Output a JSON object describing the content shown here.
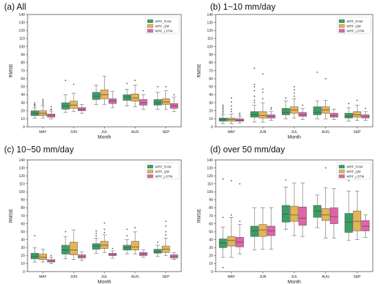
{
  "colors": {
    "WRF_RAW": "#3a9e62",
    "WRF_QM": "#e6b553",
    "WRF_LSTM": "#e065a8"
  },
  "chart_data": [
    {
      "type": "box",
      "title": "(a) All",
      "xlabel": "Month",
      "ylabel": "RMSE",
      "ylim": [
        0,
        140
      ],
      "yticks": [
        0,
        10,
        20,
        30,
        40,
        50,
        60,
        70,
        80,
        90,
        100,
        110,
        120,
        130,
        140
      ],
      "categories": [
        "MAY",
        "JUN",
        "JUL",
        "AUG",
        "SEP"
      ],
      "legend": [
        "WRF_RAW",
        "WRF_QM",
        "WRF_LSTM"
      ],
      "legend_position": "top-right",
      "series": [
        {
          "name": "WRF_RAW",
          "boxes": [
            {
              "whislo": 11,
              "q1": 14,
              "med": 17,
              "q3": 20,
              "whishi": 24,
              "fliers": [
                26,
                27,
                28,
                30
              ]
            },
            {
              "whislo": 18,
              "q1": 22,
              "med": 26,
              "q3": 30,
              "whishi": 40,
              "fliers": [
                58
              ]
            },
            {
              "whislo": 28,
              "q1": 34,
              "med": 38,
              "q3": 43,
              "whishi": 52,
              "fliers": []
            },
            {
              "whislo": 26,
              "q1": 33,
              "med": 37,
              "q3": 40,
              "whishi": 47,
              "fliers": [
                54
              ]
            },
            {
              "whislo": 22,
              "q1": 27,
              "med": 30,
              "q3": 34,
              "whishi": 43,
              "fliers": [
                50
              ]
            }
          ]
        },
        {
          "name": "WRF_QM",
          "boxes": [
            {
              "whislo": 11,
              "q1": 14,
              "med": 17,
              "q3": 20,
              "whishi": 26,
              "fliers": [
                28,
                30,
                32,
                34
              ]
            },
            {
              "whislo": 19,
              "q1": 23,
              "med": 27,
              "q3": 32,
              "whishi": 42,
              "fliers": [
                53
              ]
            },
            {
              "whislo": 28,
              "q1": 35,
              "med": 40,
              "q3": 46,
              "whishi": 63,
              "fliers": []
            },
            {
              "whislo": 25,
              "q1": 32,
              "med": 36,
              "q3": 41,
              "whishi": 52,
              "fliers": [
                58
              ]
            },
            {
              "whislo": 22,
              "q1": 28,
              "med": 31,
              "q3": 35,
              "whishi": 45,
              "fliers": [
                50
              ]
            }
          ]
        },
        {
          "name": "WRF_LSTM",
          "boxes": [
            {
              "whislo": 10,
              "q1": 12,
              "med": 14,
              "q3": 16,
              "whishi": 19,
              "fliers": [
                21,
                22,
                25
              ]
            },
            {
              "whislo": 17,
              "q1": 20,
              "med": 22,
              "q3": 24,
              "whishi": 28,
              "fliers": []
            },
            {
              "whislo": 24,
              "q1": 29,
              "med": 32,
              "q3": 35,
              "whishi": 44,
              "fliers": []
            },
            {
              "whislo": 22,
              "q1": 27,
              "med": 30,
              "q3": 34,
              "whishi": 40,
              "fliers": [
                45
              ]
            },
            {
              "whislo": 19,
              "q1": 23,
              "med": 26,
              "q3": 29,
              "whishi": 37,
              "fliers": [
                40
              ]
            }
          ]
        }
      ]
    },
    {
      "type": "box",
      "title": "(b) 1~10 mm/day",
      "xlabel": "Month",
      "ylabel": "RMSE",
      "ylim": [
        0,
        140
      ],
      "yticks": [
        0,
        10,
        20,
        30,
        40,
        50,
        60,
        70,
        80,
        90,
        100,
        110,
        120,
        130,
        140
      ],
      "categories": [
        "MAY",
        "JUN",
        "JUL",
        "AUG",
        "SEP"
      ],
      "legend": [
        "WRF_RAW",
        "WRF_QM",
        "WRF_LSTM"
      ],
      "legend_position": "top-right",
      "series": [
        {
          "name": "WRF_RAW",
          "boxes": [
            {
              "whislo": 4,
              "q1": 7,
              "med": 9,
              "q3": 11,
              "whishi": 15,
              "fliers": [
                17,
                19,
                21,
                23,
                25,
                27
              ]
            },
            {
              "whislo": 6,
              "q1": 12,
              "med": 15,
              "q3": 19,
              "whishi": 27,
              "fliers": [
                30,
                33,
                38,
                45,
                50,
                53,
                73
              ]
            },
            {
              "whislo": 10,
              "q1": 15,
              "med": 18,
              "q3": 23,
              "whishi": 32,
              "fliers": [
                36
              ]
            },
            {
              "whislo": 10,
              "q1": 15,
              "med": 18,
              "q3": 25,
              "whishi": 32,
              "fliers": [
                68
              ]
            },
            {
              "whislo": 7,
              "q1": 11,
              "med": 13,
              "q3": 17,
              "whishi": 24,
              "fliers": [
                29
              ]
            }
          ]
        },
        {
          "name": "WRF_QM",
          "boxes": [
            {
              "whislo": 4,
              "q1": 7,
              "med": 9,
              "q3": 11,
              "whishi": 16,
              "fliers": [
                19,
                22,
                26,
                31,
                36
              ]
            },
            {
              "whislo": 6,
              "q1": 11,
              "med": 14,
              "q3": 19,
              "whishi": 30,
              "fliers": [
                35,
                43,
                47,
                66
              ]
            },
            {
              "whislo": 11,
              "q1": 17,
              "med": 21,
              "q3": 25,
              "whishi": 35,
              "fliers": [
                38,
                42,
                46,
                50
              ]
            },
            {
              "whislo": 10,
              "q1": 17,
              "med": 21,
              "q3": 25,
              "whishi": 33,
              "fliers": [
                60
              ]
            },
            {
              "whislo": 8,
              "q1": 12,
              "med": 15,
              "q3": 19,
              "whishi": 27,
              "fliers": [
                33
              ]
            }
          ]
        },
        {
          "name": "WRF_LSTM",
          "boxes": [
            {
              "whislo": 5,
              "q1": 7,
              "med": 8,
              "q3": 10,
              "whishi": 13,
              "fliers": [
                15,
                17
              ]
            },
            {
              "whislo": 8,
              "q1": 11,
              "med": 13,
              "q3": 15,
              "whishi": 19,
              "fliers": [
                22,
                24
              ]
            },
            {
              "whislo": 9,
              "q1": 13,
              "med": 15,
              "q3": 18,
              "whishi": 23,
              "fliers": [
                27
              ]
            },
            {
              "whislo": 9,
              "q1": 12,
              "med": 14,
              "q3": 17,
              "whishi": 22,
              "fliers": []
            },
            {
              "whislo": 8,
              "q1": 11,
              "med": 13,
              "q3": 15,
              "whishi": 19,
              "fliers": [
                23
              ]
            }
          ]
        }
      ]
    },
    {
      "type": "box",
      "title": "(c) 10~50 mm/day",
      "xlabel": "Month",
      "ylabel": "RMSE",
      "ylim": [
        0,
        140
      ],
      "yticks": [
        0,
        10,
        20,
        30,
        40,
        50,
        60,
        70,
        80,
        90,
        100,
        110,
        120,
        130,
        140
      ],
      "categories": [
        "MAY",
        "JUN",
        "JUL",
        "AUG",
        "SEP"
      ],
      "legend": [
        "WRF_RAW",
        "WRF_QM",
        "WRF_LSTM"
      ],
      "legend_position": "top-right",
      "series": [
        {
          "name": "WRF_RAW",
          "boxes": [
            {
              "whislo": 12,
              "q1": 16,
              "med": 19,
              "q3": 23,
              "whishi": 30,
              "fliers": [
                45
              ]
            },
            {
              "whislo": 16,
              "q1": 22,
              "med": 27,
              "q3": 33,
              "whishi": 44,
              "fliers": [
                50
              ]
            },
            {
              "whislo": 23,
              "q1": 28,
              "med": 32,
              "q3": 35,
              "whishi": 42,
              "fliers": [
                45,
                48,
                51
              ]
            },
            {
              "whislo": 22,
              "q1": 27,
              "med": 30,
              "q3": 33,
              "whishi": 40,
              "fliers": [
                45,
                53
              ]
            },
            {
              "whislo": 19,
              "q1": 23,
              "med": 25,
              "q3": 28,
              "whishi": 33,
              "fliers": [
                37
              ]
            }
          ]
        },
        {
          "name": "WRF_QM",
          "boxes": [
            {
              "whislo": 12,
              "q1": 15,
              "med": 18,
              "q3": 22,
              "whishi": 28,
              "fliers": []
            },
            {
              "whislo": 15,
              "q1": 21,
              "med": 27,
              "q3": 37,
              "whishi": 52,
              "fliers": []
            },
            {
              "whislo": 24,
              "q1": 29,
              "med": 33,
              "q3": 38,
              "whishi": 46,
              "fliers": [
                49,
                53,
                61
              ]
            },
            {
              "whislo": 22,
              "q1": 27,
              "med": 31,
              "q3": 38,
              "whishi": 50,
              "fliers": [
                55
              ]
            },
            {
              "whislo": 20,
              "q1": 24,
              "med": 28,
              "q3": 32,
              "whishi": 42,
              "fliers": [
                46,
                50,
                57,
                63
              ]
            }
          ]
        },
        {
          "name": "WRF_LSTM",
          "boxes": [
            {
              "whislo": 10,
              "q1": 12,
              "med": 13,
              "q3": 15,
              "whishi": 18,
              "fliers": [
                20
              ]
            },
            {
              "whislo": 14,
              "q1": 17,
              "med": 19,
              "q3": 21,
              "whishi": 25,
              "fliers": []
            },
            {
              "whislo": 17,
              "q1": 20,
              "med": 21,
              "q3": 23,
              "whishi": 26,
              "fliers": [
                29
              ]
            },
            {
              "whislo": 18,
              "q1": 20,
              "med": 22,
              "q3": 24,
              "whishi": 27,
              "fliers": []
            },
            {
              "whislo": 15,
              "q1": 17,
              "med": 19,
              "q3": 21,
              "whishi": 24,
              "fliers": []
            }
          ]
        }
      ]
    },
    {
      "type": "box",
      "title": "(d) over 50 mm/day",
      "xlabel": "Month",
      "ylabel": "RMSE",
      "ylim": [
        0,
        140
      ],
      "yticks": [
        0,
        10,
        20,
        30,
        40,
        50,
        60,
        70,
        80,
        90,
        100,
        110,
        120,
        130,
        140
      ],
      "categories": [
        "MAY",
        "JUN",
        "JUL",
        "AUG",
        "SEP"
      ],
      "legend": [
        "WRF_RAW",
        "WRF_QM",
        "WRF_LSTM"
      ],
      "legend_position": "top-right",
      "series": [
        {
          "name": "WRF_RAW",
          "boxes": [
            {
              "whislo": 18,
              "q1": 30,
              "med": 36,
              "q3": 41,
              "whishi": 56,
              "fliers": [
                5,
                68,
                116
              ]
            },
            {
              "whislo": 27,
              "q1": 44,
              "med": 51,
              "q3": 57,
              "whishi": 80,
              "fliers": []
            },
            {
              "whislo": 53,
              "q1": 62,
              "med": 72,
              "q3": 83,
              "whishi": 106,
              "fliers": [
                115
              ]
            },
            {
              "whislo": 55,
              "q1": 68,
              "med": 76,
              "q3": 83,
              "whishi": 96,
              "fliers": []
            },
            {
              "whislo": 39,
              "q1": 49,
              "med": 62,
              "q3": 73,
              "whishi": 101,
              "fliers": [
                114
              ]
            }
          ]
        },
        {
          "name": "WRF_QM",
          "boxes": [
            {
              "whislo": 18,
              "q1": 32,
              "med": 39,
              "q3": 44,
              "whishi": 68,
              "fliers": [
                71,
                114
              ]
            },
            {
              "whislo": 28,
              "q1": 44,
              "med": 52,
              "q3": 59,
              "whishi": 80,
              "fliers": []
            },
            {
              "whislo": 45,
              "q1": 63,
              "med": 71,
              "q3": 82,
              "whishi": 111,
              "fliers": []
            },
            {
              "whislo": 42,
              "q1": 64,
              "med": 71,
              "q3": 79,
              "whishi": 105,
              "fliers": [
                130
              ]
            },
            {
              "whislo": 40,
              "q1": 51,
              "med": 63,
              "q3": 76,
              "whishi": 101,
              "fliers": [
                116
              ]
            }
          ]
        },
        {
          "name": "WRF_LSTM",
          "boxes": [
            {
              "whislo": 22,
              "q1": 31,
              "med": 37,
              "q3": 43,
              "whishi": 59,
              "fliers": [
                63,
                110
              ]
            },
            {
              "whislo": 28,
              "q1": 45,
              "med": 51,
              "q3": 57,
              "whishi": 80,
              "fliers": []
            },
            {
              "whislo": 44,
              "q1": 58,
              "med": 67,
              "q3": 81,
              "whishi": 111,
              "fliers": []
            },
            {
              "whislo": 42,
              "q1": 60,
              "med": 69,
              "q3": 80,
              "whishi": 104,
              "fliers": []
            },
            {
              "whislo": 43,
              "q1": 51,
              "med": 57,
              "q3": 64,
              "whishi": 71,
              "fliers": []
            }
          ]
        }
      ]
    }
  ]
}
